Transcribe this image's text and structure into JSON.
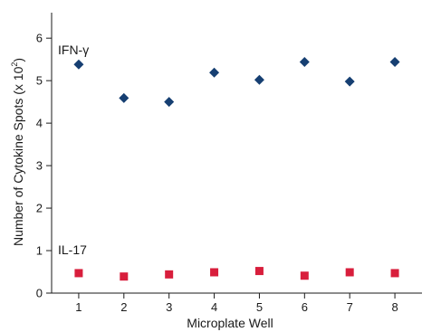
{
  "chart_data": {
    "type": "scatter",
    "xlabel": "Microplate Well",
    "ylabel": "Number of Cytokine Spots (x 10",
    "ylabel_sup": "2",
    "ylabel_close": ")",
    "xlim": [
      0.4,
      8.6
    ],
    "ylim": [
      0,
      6.6
    ],
    "x_ticks": [
      1,
      2,
      3,
      4,
      5,
      6,
      7,
      8
    ],
    "y_ticks": [
      0,
      1,
      2,
      3,
      4,
      5,
      6
    ],
    "grid": false,
    "series": [
      {
        "name": "IFN-γ",
        "marker": "diamond",
        "color": "#163f72",
        "x": [
          1,
          2,
          3,
          4,
          5,
          6,
          7,
          8
        ],
        "y": [
          5.38,
          4.59,
          4.5,
          5.19,
          5.02,
          5.44,
          4.98,
          5.44
        ]
      },
      {
        "name": "IL-17",
        "marker": "square",
        "color": "#d81e3c",
        "x": [
          1,
          2,
          3,
          4,
          5,
          6,
          7,
          8
        ],
        "y": [
          0.47,
          0.39,
          0.44,
          0.49,
          0.52,
          0.41,
          0.49,
          0.47
        ]
      }
    ]
  }
}
